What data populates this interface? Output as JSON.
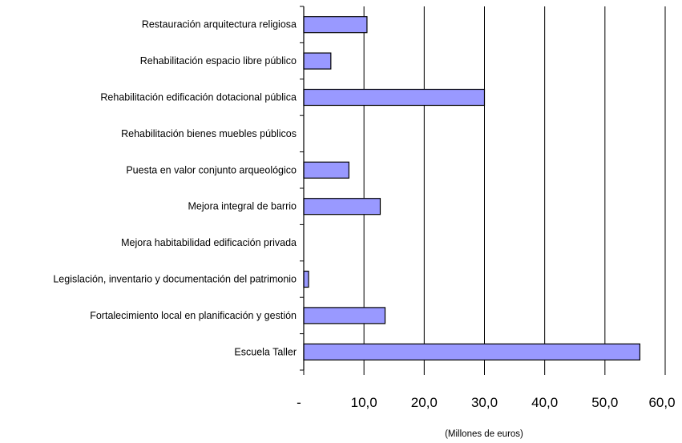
{
  "chart_data": {
    "type": "bar",
    "orientation": "horizontal",
    "categories": [
      "Restauración arquitectura religiosa",
      "Rehabilitación espacio libre público",
      "Rehabilitación edificación dotacional pública",
      "Rehabilitación bienes muebles públicos",
      "Puesta en valor conjunto arqueológico",
      "Mejora integral de barrio",
      "Mejora habitabilidad edificación privada",
      "Legislación, inventario y documentación del patrimonio",
      "Fortalecimiento local en planificación y gestión",
      "Escuela Taller"
    ],
    "values": [
      10.5,
      4.5,
      30.0,
      0,
      7.5,
      12.7,
      0,
      0.8,
      13.5,
      55.8
    ],
    "title": "",
    "xlabel": "(Millones de euros)",
    "ylabel": "",
    "xlim": [
      0,
      60
    ],
    "xticks": [
      0,
      10,
      20,
      30,
      40,
      50,
      60
    ],
    "xtick_labels": [
      "-",
      "10,0",
      "20,0",
      "30,0",
      "40,0",
      "50,0",
      "60,0"
    ],
    "grid": "vertical",
    "bar_color": "#9999ff",
    "bar_edge_color": "#000000"
  }
}
